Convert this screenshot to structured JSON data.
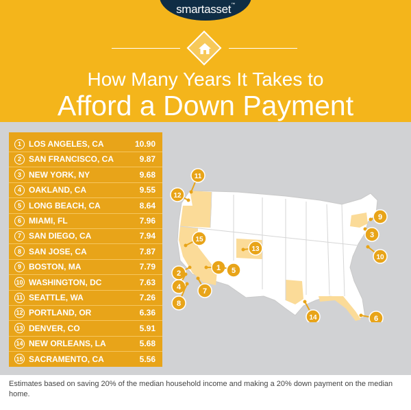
{
  "brand": {
    "logo": "smartasset",
    "trademark": "™"
  },
  "title": {
    "line1": "How Many Years It Takes to",
    "line2": "Afford a Down Payment"
  },
  "rankings": [
    {
      "rank": "1",
      "city": "LOS ANGELES, CA",
      "value": "10.90"
    },
    {
      "rank": "2",
      "city": "SAN FRANCISCO, CA",
      "value": "9.87"
    },
    {
      "rank": "3",
      "city": "NEW YORK, NY",
      "value": "9.68"
    },
    {
      "rank": "4",
      "city": "OAKLAND, CA",
      "value": "9.55"
    },
    {
      "rank": "5",
      "city": "LONG BEACH, CA",
      "value": "8.64"
    },
    {
      "rank": "6",
      "city": "MIAMI, FL",
      "value": "7.96"
    },
    {
      "rank": "7",
      "city": "SAN DIEGO, CA",
      "value": "7.94"
    },
    {
      "rank": "8",
      "city": "SAN JOSE, CA",
      "value": "7.87"
    },
    {
      "rank": "9",
      "city": "BOSTON, MA",
      "value": "7.79"
    },
    {
      "rank": "10",
      "city": "WASHINGTON, DC",
      "value": "7.63"
    },
    {
      "rank": "11",
      "city": "SEATTLE, WA",
      "value": "7.26"
    },
    {
      "rank": "12",
      "city": "PORTLAND, OR",
      "value": "6.36"
    },
    {
      "rank": "13",
      "city": "DENVER, CO",
      "value": "5.91"
    },
    {
      "rank": "14",
      "city": "NEW ORLEANS, LA",
      "value": "5.68"
    },
    {
      "rank": "15",
      "city": "SACRAMENTO, CA",
      "value": "5.56"
    }
  ],
  "map_markers": [
    "11",
    "12",
    "15",
    "13",
    "1",
    "5",
    "2",
    "4",
    "7",
    "8",
    "9",
    "3",
    "10",
    "14",
    "6"
  ],
  "footnote": "Estimates based on saving 20% of the median household income and making a 20% down payment on the median home.",
  "colors": {
    "header": "#f4b51b",
    "panel": "#e8a419",
    "logo_tab": "#0f2d45",
    "map_land": "#ffffff",
    "map_highlight": "#fbdb98",
    "background": "#d1d2d4"
  },
  "icons": {
    "header_badge": "home-icon"
  }
}
